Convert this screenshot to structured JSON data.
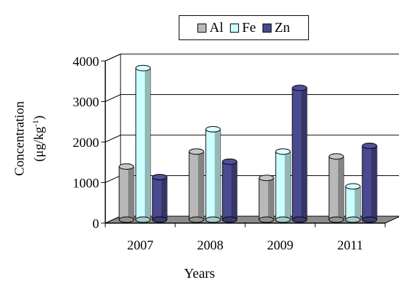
{
  "chart_data": {
    "type": "bar",
    "title": "",
    "xlabel": "Years",
    "ylabel_line1": "Concentration",
    "ylabel_line2_prefix": "(μg/kg",
    "ylabel_line2_sup": "-1",
    "ylabel_line2_suffix": ")",
    "categories": [
      "2007",
      "2008",
      "2009",
      "2011"
    ],
    "ylim": [
      0,
      4000
    ],
    "yticks": [
      "0",
      "1000",
      "2000",
      "3000",
      "4000"
    ],
    "grid": true,
    "legend_position": "top",
    "series": [
      {
        "name": "Al",
        "values": [
          1310,
          1680,
          1030,
          1560
        ],
        "color": "#b8b8b8"
      },
      {
        "name": "Fe",
        "values": [
          3740,
          2230,
          1680,
          820
        ],
        "color": "#ccffff"
      },
      {
        "name": "Zn",
        "values": [
          1050,
          1430,
          3250,
          1820
        ],
        "color": "#4a4a90"
      }
    ]
  }
}
